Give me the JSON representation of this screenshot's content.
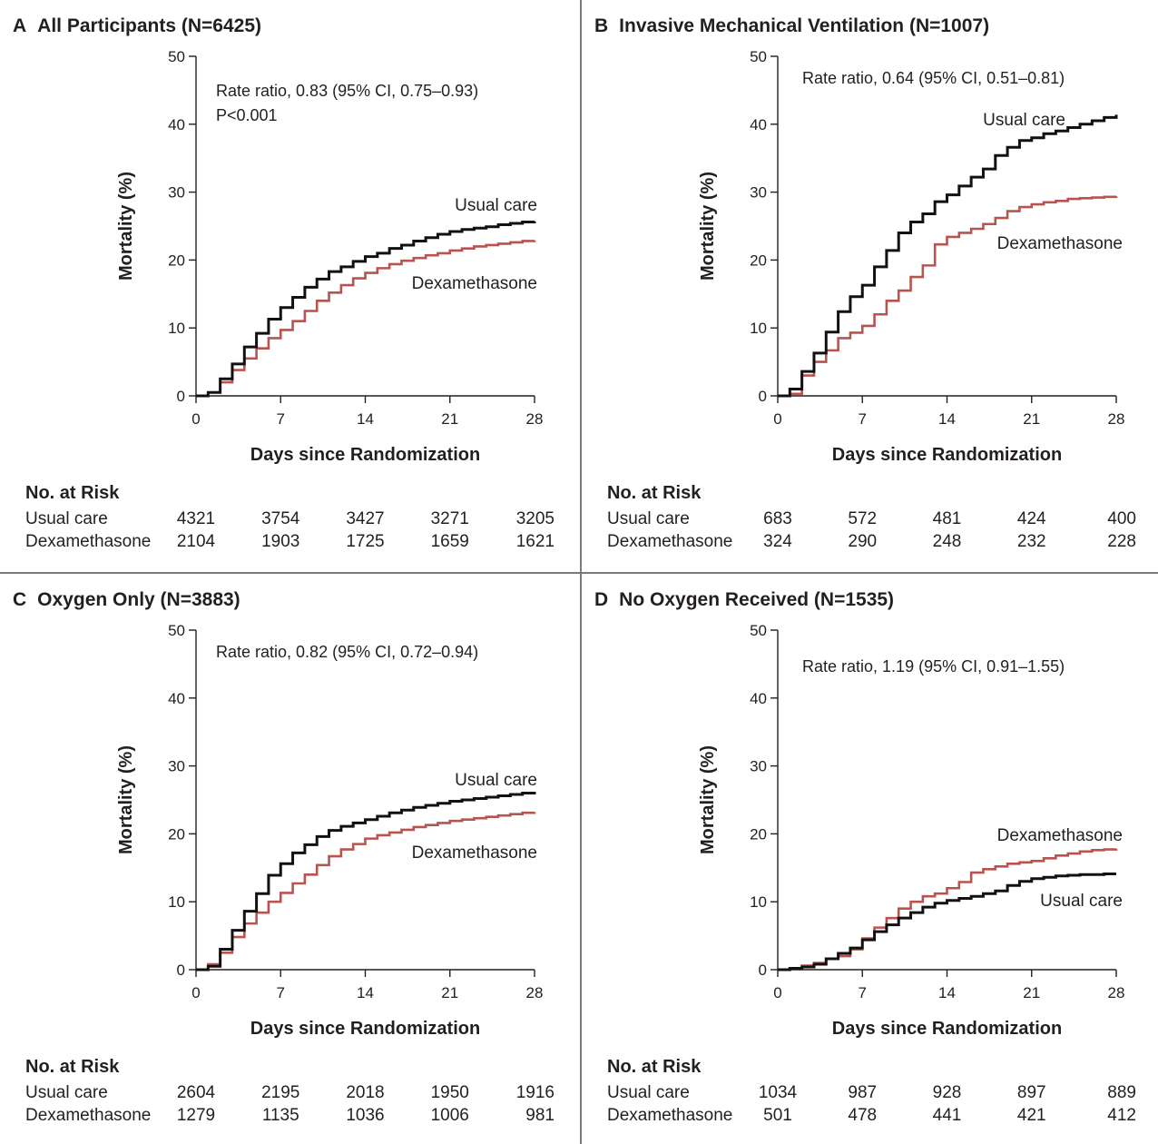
{
  "colors": {
    "usual_care": "#111111",
    "dexamethasone": "#b85450",
    "axis": "#231f20",
    "divider": "#7a7a7a"
  },
  "chart_data": [
    {
      "type": "line",
      "letter": "A",
      "title": "All Participants (N=6425)",
      "annotation": [
        "Rate ratio, 0.83 (95% CI, 0.75–0.93)",
        "P<0.001"
      ],
      "xlabel": "Days since Randomization",
      "ylabel": "Mortality (%)",
      "xlim": [
        0,
        28
      ],
      "ylim": [
        0,
        50
      ],
      "xticks": [
        0,
        7,
        14,
        21,
        28
      ],
      "yticks": [
        0,
        10,
        20,
        30,
        40,
        50
      ],
      "step": true,
      "series": [
        {
          "name": "Usual care",
          "color": "#111111",
          "x": [
            0,
            1,
            2,
            3,
            4,
            5,
            6,
            7,
            8,
            9,
            10,
            11,
            12,
            13,
            14,
            15,
            16,
            17,
            18,
            19,
            20,
            21,
            22,
            23,
            24,
            25,
            26,
            27,
            28
          ],
          "y": [
            0,
            0.5,
            2.5,
            4.7,
            7.2,
            9.2,
            11.3,
            13.0,
            14.5,
            16.0,
            17.2,
            18.3,
            19.0,
            19.8,
            20.5,
            21.0,
            21.7,
            22.2,
            22.8,
            23.3,
            23.8,
            24.2,
            24.5,
            24.7,
            24.9,
            25.2,
            25.4,
            25.6,
            25.7
          ]
        },
        {
          "name": "Dexamethasone",
          "color": "#b85450",
          "x": [
            0,
            1,
            2,
            3,
            4,
            5,
            6,
            7,
            8,
            9,
            10,
            11,
            12,
            13,
            14,
            15,
            16,
            17,
            18,
            19,
            20,
            21,
            22,
            23,
            24,
            25,
            26,
            27,
            28
          ],
          "y": [
            0,
            0.5,
            2.0,
            3.8,
            5.5,
            7.0,
            8.5,
            9.7,
            11.0,
            12.5,
            14.0,
            15.2,
            16.3,
            17.3,
            18.1,
            18.8,
            19.4,
            19.9,
            20.3,
            20.7,
            21.0,
            21.4,
            21.7,
            22.0,
            22.2,
            22.4,
            22.6,
            22.8,
            22.9
          ]
        }
      ],
      "risk_table": {
        "header": "No. at Risk",
        "rows": [
          {
            "label": "Usual care",
            "values": [
              "4321",
              "3754",
              "3427",
              "3271",
              "3205"
            ]
          },
          {
            "label": "Dexamethasone",
            "values": [
              "2104",
              "1903",
              "1725",
              "1659",
              "1621"
            ]
          }
        ]
      }
    },
    {
      "type": "line",
      "letter": "B",
      "title": "Invasive Mechanical Ventilation (N=1007)",
      "annotation": [
        "Rate ratio, 0.64 (95% CI, 0.51–0.81)"
      ],
      "xlabel": "Days since Randomization",
      "ylabel": "Mortality (%)",
      "xlim": [
        0,
        28
      ],
      "ylim": [
        0,
        50
      ],
      "xticks": [
        0,
        7,
        14,
        21,
        28
      ],
      "yticks": [
        0,
        10,
        20,
        30,
        40,
        50
      ],
      "step": true,
      "series": [
        {
          "name": "Usual care",
          "color": "#111111",
          "x": [
            0,
            1,
            2,
            3,
            4,
            5,
            6,
            7,
            8,
            9,
            10,
            11,
            12,
            13,
            14,
            15,
            16,
            17,
            18,
            19,
            20,
            21,
            22,
            23,
            24,
            25,
            26,
            27,
            28
          ],
          "y": [
            0,
            1.0,
            3.6,
            6.3,
            9.4,
            12.4,
            14.6,
            16.3,
            19.0,
            21.4,
            24.0,
            25.6,
            26.8,
            28.6,
            29.6,
            30.9,
            32.2,
            33.4,
            35.4,
            36.6,
            37.6,
            38.0,
            38.6,
            39.0,
            39.5,
            40.0,
            40.5,
            41.0,
            41.4
          ]
        },
        {
          "name": "Dexamethasone",
          "color": "#b85450",
          "x": [
            0,
            1,
            2,
            3,
            4,
            5,
            6,
            7,
            8,
            9,
            10,
            11,
            12,
            13,
            14,
            15,
            16,
            17,
            18,
            19,
            20,
            21,
            22,
            23,
            24,
            25,
            26,
            27,
            28
          ],
          "y": [
            0,
            0.3,
            3.0,
            5.0,
            6.7,
            8.5,
            9.3,
            10.3,
            12.0,
            14.0,
            15.5,
            17.5,
            19.2,
            22.3,
            23.4,
            24.0,
            24.6,
            25.3,
            26.2,
            27.2,
            27.8,
            28.2,
            28.5,
            28.7,
            29.0,
            29.1,
            29.2,
            29.3,
            29.4
          ]
        }
      ],
      "risk_table": {
        "header": "No. at Risk",
        "rows": [
          {
            "label": "Usual care",
            "values": [
              "683",
              "572",
              "481",
              "424",
              "400"
            ]
          },
          {
            "label": "Dexamethasone",
            "values": [
              "324",
              "290",
              "248",
              "232",
              "228"
            ]
          }
        ]
      }
    },
    {
      "type": "line",
      "letter": "C",
      "title": "Oxygen Only (N=3883)",
      "annotation": [
        "Rate ratio, 0.82 (95% CI, 0.72–0.94)"
      ],
      "xlabel": "Days since Randomization",
      "ylabel": "Mortality (%)",
      "xlim": [
        0,
        28
      ],
      "ylim": [
        0,
        50
      ],
      "xticks": [
        0,
        7,
        14,
        21,
        28
      ],
      "yticks": [
        0,
        10,
        20,
        30,
        40,
        50
      ],
      "step": true,
      "series": [
        {
          "name": "Usual care",
          "color": "#111111",
          "x": [
            0,
            1,
            2,
            3,
            4,
            5,
            6,
            7,
            8,
            9,
            10,
            11,
            12,
            13,
            14,
            15,
            16,
            17,
            18,
            19,
            20,
            21,
            22,
            23,
            24,
            25,
            26,
            27,
            28
          ],
          "y": [
            0,
            0.5,
            3.0,
            5.8,
            8.6,
            11.2,
            13.9,
            15.6,
            17.2,
            18.4,
            19.6,
            20.5,
            21.1,
            21.6,
            22.1,
            22.6,
            23.1,
            23.5,
            23.9,
            24.2,
            24.5,
            24.8,
            25.0,
            25.2,
            25.4,
            25.6,
            25.8,
            26.0,
            26.2
          ]
        },
        {
          "name": "Dexamethasone",
          "color": "#b85450",
          "x": [
            0,
            1,
            2,
            3,
            4,
            5,
            6,
            7,
            8,
            9,
            10,
            11,
            12,
            13,
            14,
            15,
            16,
            17,
            18,
            19,
            20,
            21,
            22,
            23,
            24,
            25,
            26,
            27,
            28
          ],
          "y": [
            0,
            0.8,
            2.5,
            4.8,
            6.8,
            8.4,
            10.0,
            11.3,
            12.7,
            14.0,
            15.4,
            16.7,
            17.7,
            18.5,
            19.3,
            19.8,
            20.2,
            20.6,
            21.0,
            21.3,
            21.6,
            21.9,
            22.1,
            22.3,
            22.5,
            22.7,
            22.9,
            23.1,
            23.2
          ]
        }
      ],
      "risk_table": {
        "header": "No. at Risk",
        "rows": [
          {
            "label": "Usual care",
            "values": [
              "2604",
              "2195",
              "2018",
              "1950",
              "1916"
            ]
          },
          {
            "label": "Dexamethasone",
            "values": [
              "1279",
              "1135",
              "1036",
              "1006",
              "981"
            ]
          }
        ]
      }
    },
    {
      "type": "line",
      "letter": "D",
      "title": "No Oxygen Received (N=1535)",
      "annotation": [
        "Rate ratio, 1.19 (95% CI, 0.91–1.55)"
      ],
      "xlabel": "Days since Randomization",
      "ylabel": "Mortality (%)",
      "xlim": [
        0,
        28
      ],
      "ylim": [
        0,
        50
      ],
      "xticks": [
        0,
        7,
        14,
        21,
        28
      ],
      "yticks": [
        0,
        10,
        20,
        30,
        40,
        50
      ],
      "step": true,
      "series": [
        {
          "name": "Usual care",
          "color": "#111111",
          "x": [
            0,
            1,
            2,
            3,
            4,
            5,
            6,
            7,
            8,
            9,
            10,
            11,
            12,
            13,
            14,
            15,
            16,
            17,
            18,
            19,
            20,
            21,
            22,
            23,
            24,
            25,
            26,
            27,
            28
          ],
          "y": [
            0,
            0.2,
            0.4,
            0.8,
            1.6,
            2.4,
            3.2,
            4.4,
            5.6,
            6.6,
            7.6,
            8.4,
            9.2,
            9.8,
            10.2,
            10.5,
            10.8,
            11.2,
            11.6,
            12.4,
            13.0,
            13.4,
            13.6,
            13.8,
            13.9,
            14.0,
            14.0,
            14.1,
            14.1
          ]
        },
        {
          "name": "Dexamethasone",
          "color": "#b85450",
          "x": [
            0,
            1,
            2,
            3,
            4,
            5,
            6,
            7,
            8,
            9,
            10,
            11,
            12,
            13,
            14,
            15,
            16,
            17,
            18,
            19,
            20,
            21,
            22,
            23,
            24,
            25,
            26,
            27,
            28
          ],
          "y": [
            0,
            0.2,
            0.6,
            1.0,
            1.6,
            2.0,
            3.0,
            4.6,
            6.2,
            7.6,
            9.0,
            10.0,
            10.8,
            11.2,
            12.0,
            12.9,
            14.3,
            14.8,
            15.2,
            15.6,
            15.8,
            16.0,
            16.4,
            16.8,
            17.1,
            17.4,
            17.6,
            17.7,
            17.8
          ]
        }
      ],
      "risk_table": {
        "header": "No. at Risk",
        "rows": [
          {
            "label": "Usual care",
            "values": [
              "1034",
              "987",
              "928",
              "897",
              "889"
            ]
          },
          {
            "label": "Dexamethasone",
            "values": [
              "501",
              "478",
              "441",
              "421",
              "412"
            ]
          }
        ]
      }
    }
  ]
}
